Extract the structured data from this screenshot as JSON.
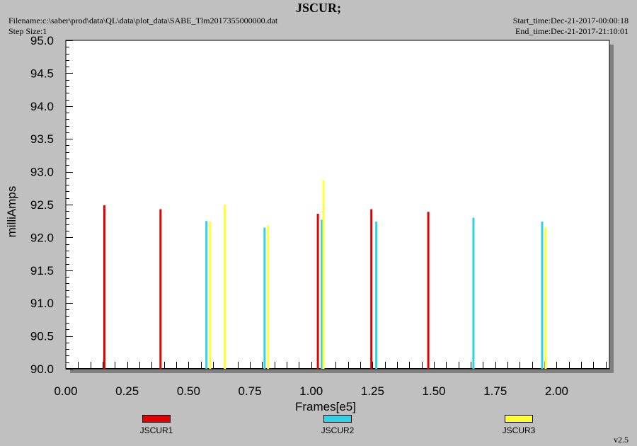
{
  "header": {
    "title": "JSCUR;",
    "filename": "Filename:c:\\saber\\prod\\data\\QL\\data\\plot_data\\SABE_Tlm2017355000000.dat",
    "step_size": "Step Size:1",
    "start_time": "Start_time:Dec-21-2017-00:00:18",
    "end_time": "End_time:Dec-21-2017-21:10:01"
  },
  "version": "v2.5",
  "chart_data": {
    "type": "bar",
    "title": "JSCUR;",
    "xlabel": "Frames[e5]",
    "ylabel": "milliAmps",
    "xlim": [
      0.0,
      2.215
    ],
    "ylim": [
      90.0,
      95.0
    ],
    "xticks": [
      "0.00",
      "0.25",
      "0.50",
      "0.75",
      "1.00",
      "1.25",
      "1.50",
      "1.75",
      "2.00"
    ],
    "yticks": [
      "90.0",
      "90.5",
      "91.0",
      "91.5",
      "92.0",
      "92.5",
      "93.0",
      "93.5",
      "94.0",
      "94.5",
      "95.0"
    ],
    "grid": false,
    "legend_position": "bottom",
    "series": [
      {
        "name": "JSCUR1",
        "color": "#e00000",
        "points": [
          {
            "x": 0.157,
            "y": 92.49
          },
          {
            "x": 0.386,
            "y": 92.43
          },
          {
            "x": 1.027,
            "y": 92.36
          },
          {
            "x": 1.245,
            "y": 92.43
          },
          {
            "x": 1.477,
            "y": 92.39
          }
        ]
      },
      {
        "name": "JSCUR2",
        "color": "#32d2e6",
        "points": [
          {
            "x": 0.573,
            "y": 92.25
          },
          {
            "x": 0.81,
            "y": 92.15
          },
          {
            "x": 1.043,
            "y": 92.27
          },
          {
            "x": 1.265,
            "y": 92.24
          },
          {
            "x": 1.661,
            "y": 92.3
          },
          {
            "x": 1.941,
            "y": 92.24
          }
        ]
      },
      {
        "name": "JSCUR3",
        "color": "#ffff32",
        "points": [
          {
            "x": 0.588,
            "y": 92.24
          },
          {
            "x": 0.648,
            "y": 92.5
          },
          {
            "x": 0.824,
            "y": 92.18
          },
          {
            "x": 1.05,
            "y": 92.87
          },
          {
            "x": 1.955,
            "y": 92.15
          }
        ]
      }
    ]
  }
}
